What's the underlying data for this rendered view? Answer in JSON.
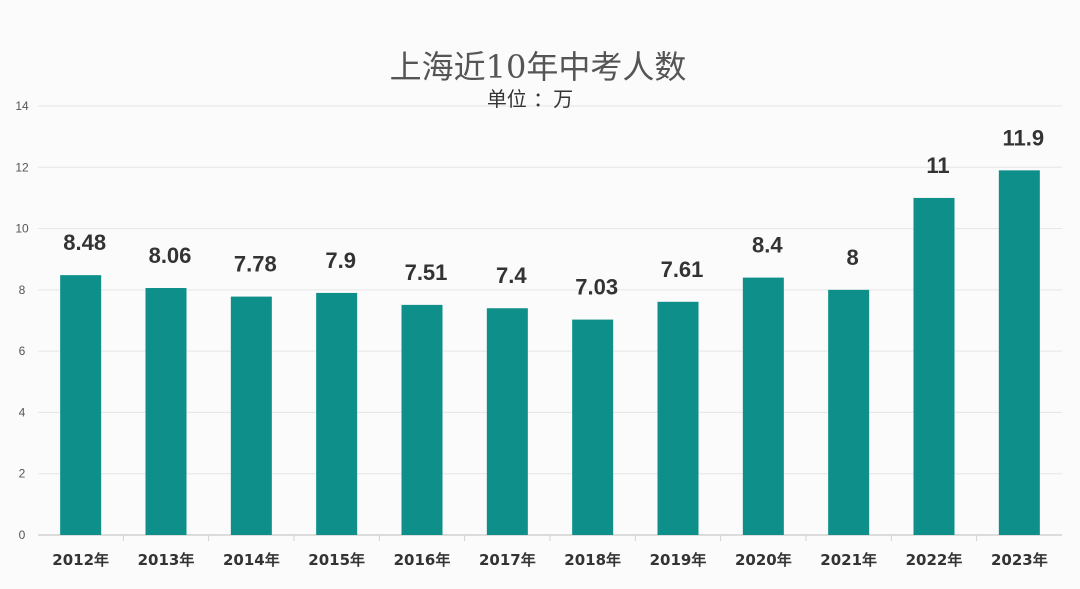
{
  "chart_data": {
    "type": "bar",
    "title": "上海近10年中考人数",
    "subtitle": "单位  ：万",
    "categories": [
      "2012年",
      "2013年",
      "2014年",
      "2015年",
      "2016年",
      "2017年",
      "2018年",
      "2019年",
      "2020年",
      "2021年",
      "2022年",
      "2023年"
    ],
    "values": [
      8.48,
      8.06,
      7.78,
      7.9,
      7.51,
      7.4,
      7.03,
      7.61,
      8.4,
      8,
      11,
      11.9
    ],
    "value_labels": [
      "8.48",
      "8.06",
      "7.78",
      "7.9",
      "7.51",
      "7.4",
      "7.03",
      "7.61",
      "8.4",
      "8",
      "11",
      "11.9"
    ],
    "ylim": [
      0,
      14
    ],
    "yticks": [
      "0",
      "2",
      "4",
      "6",
      "8",
      "10",
      "12",
      "14"
    ],
    "xlabel": "",
    "ylabel": "",
    "grid": true,
    "legend": "none",
    "bar_color": "#0e8f8a",
    "grid_color": "#e6e6e6"
  }
}
